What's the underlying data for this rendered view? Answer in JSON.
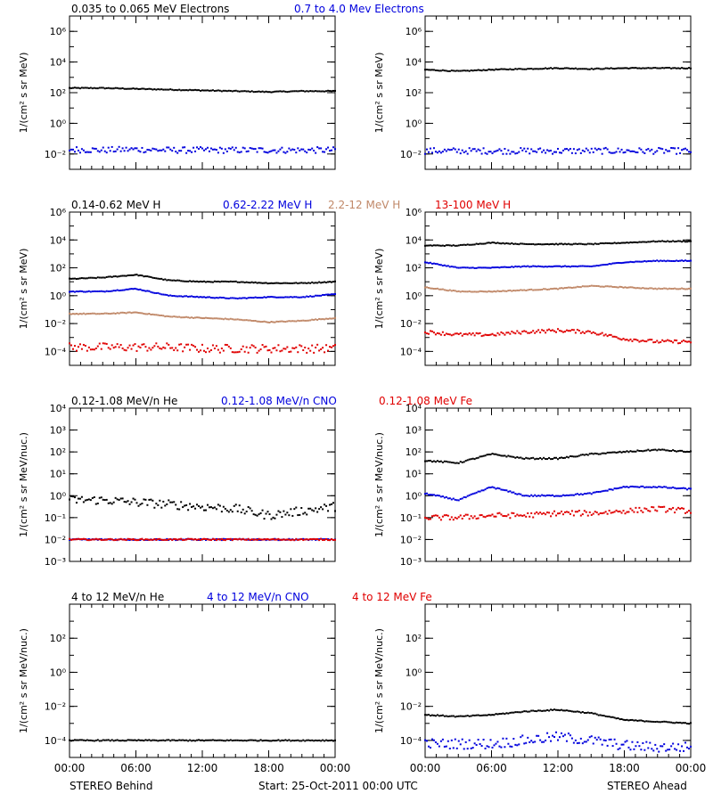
{
  "colors": {
    "black": "#000000",
    "blue": "#0000dd",
    "tan": "#c08868",
    "red": "#e00000"
  },
  "footer": {
    "left": "STEREO Behind",
    "center": "Start: 25-Oct-2011 00:00 UTC",
    "right": "STEREO Ahead"
  },
  "rows": [
    {
      "legend": [
        {
          "text": "0.035 to 0.065 MeV Electrons",
          "color": "#000000"
        },
        {
          "text": "0.7 to 4.0 Mev Electrons",
          "color": "#0000dd"
        }
      ],
      "ylabel": "1/(cm² s sr MeV)",
      "ylog": [
        -3,
        7
      ],
      "yticks": [
        {
          "label": "10⁶",
          "e": 6
        },
        {
          "label": "10⁴",
          "e": 4
        },
        {
          "label": "10²",
          "e": 2
        },
        {
          "label": "10⁰",
          "e": 0
        },
        {
          "label": "10⁻²",
          "e": -2
        }
      ]
    },
    {
      "legend": [
        {
          "text": "0.14-0.62 MeV H",
          "color": "#000000"
        },
        {
          "text": "0.62-2.22 MeV H",
          "color": "#0000dd"
        },
        {
          "text": "2.2-12 MeV H",
          "color": "#c08868"
        },
        {
          "text": "13-100 MeV H",
          "color": "#e00000"
        }
      ],
      "ylabel": "1/(cm² s sr MeV)",
      "ylog": [
        -5,
        6
      ],
      "yticks": [
        {
          "label": "10⁶",
          "e": 6
        },
        {
          "label": "10⁴",
          "e": 4
        },
        {
          "label": "10²",
          "e": 2
        },
        {
          "label": "10⁰",
          "e": 0
        },
        {
          "label": "10⁻²",
          "e": -2
        },
        {
          "label": "10⁻⁴",
          "e": -4
        }
      ]
    },
    {
      "legend": [
        {
          "text": "0.12-1.08 MeV/n He",
          "color": "#000000"
        },
        {
          "text": "0.12-1.08 MeV/n CNO",
          "color": "#0000dd"
        },
        {
          "text": "0.12-1.08 MeV Fe",
          "color": "#e00000"
        }
      ],
      "ylabel": "1/(cm² s sr MeV/nuc.)",
      "ylog": [
        -3,
        4
      ],
      "yticks": [
        {
          "label": "10⁴",
          "e": 4
        },
        {
          "label": "10³",
          "e": 3
        },
        {
          "label": "10²",
          "e": 2
        },
        {
          "label": "10¹",
          "e": 1
        },
        {
          "label": "10⁰",
          "e": 0
        },
        {
          "label": "10⁻¹",
          "e": -1
        },
        {
          "label": "10⁻²",
          "e": -2
        },
        {
          "label": "10⁻³",
          "e": -3
        }
      ]
    },
    {
      "legend": [
        {
          "text": "4 to 12 MeV/n He",
          "color": "#000000"
        },
        {
          "text": "4 to 12 MeV/n CNO",
          "color": "#0000dd"
        },
        {
          "text": "4 to 12 MeV Fe",
          "color": "#e00000"
        }
      ],
      "ylabel": "1/(cm² s sr MeV/nuc.)",
      "ylog": [
        -5,
        4
      ],
      "yticks": [
        {
          "label": "10²",
          "e": 2
        },
        {
          "label": "10⁰",
          "e": 0
        },
        {
          "label": "10⁻²",
          "e": -2
        },
        {
          "label": "10⁻⁴",
          "e": -4
        }
      ]
    }
  ],
  "chart_data": [
    {
      "type": "scatter",
      "spacecraft": "STEREO Behind",
      "x_hours": [
        0,
        3,
        6,
        9,
        12,
        15,
        18,
        21,
        24
      ],
      "ylog": [
        -3,
        7
      ],
      "series": [
        {
          "name": "0.035 to 0.065 MeV Electrons",
          "color": "#000000",
          "log10": [
            2.3,
            2.3,
            2.25,
            2.2,
            2.15,
            2.1,
            2.05,
            2.1,
            2.1
          ]
        },
        {
          "name": "0.7 to 4.0 Mev Electrons",
          "color": "#0000dd",
          "log10": [
            -1.7,
            -1.75,
            -1.7,
            -1.75,
            -1.75,
            -1.75,
            -1.75,
            -1.75,
            -1.75
          ],
          "scatter": 0.2
        }
      ]
    },
    {
      "type": "scatter",
      "spacecraft": "STEREO Ahead",
      "x_hours": [
        0,
        3,
        6,
        9,
        12,
        15,
        18,
        21,
        24
      ],
      "ylog": [
        -3,
        7
      ],
      "series": [
        {
          "name": "0.035 to 0.065 MeV Electrons",
          "color": "#000000",
          "log10": [
            3.5,
            3.4,
            3.5,
            3.55,
            3.6,
            3.55,
            3.6,
            3.6,
            3.6
          ]
        },
        {
          "name": "0.7 to 4.0 Mev Electrons",
          "color": "#0000dd",
          "log10": [
            -1.8,
            -1.8,
            -1.8,
            -1.8,
            -1.8,
            -1.8,
            -1.8,
            -1.8,
            -1.8
          ],
          "scatter": 0.2
        }
      ]
    },
    {
      "type": "scatter",
      "spacecraft": "STEREO Behind",
      "x_hours": [
        0,
        3,
        6,
        9,
        12,
        15,
        18,
        21,
        24
      ],
      "ylog": [
        -5,
        6
      ],
      "series": [
        {
          "name": "0.14-0.62 MeV H",
          "color": "#000000",
          "log10": [
            1.2,
            1.3,
            1.5,
            1.1,
            1.0,
            1.0,
            0.9,
            0.9,
            1.0
          ]
        },
        {
          "name": "0.62-2.22 MeV H",
          "color": "#0000dd",
          "log10": [
            0.3,
            0.3,
            0.5,
            0.0,
            -0.1,
            -0.2,
            -0.1,
            -0.1,
            0.1
          ]
        },
        {
          "name": "2.2-12 MeV H",
          "color": "#c08868",
          "log10": [
            -1.3,
            -1.3,
            -1.2,
            -1.5,
            -1.6,
            -1.7,
            -1.9,
            -1.8,
            -1.6
          ]
        },
        {
          "name": "13-100 MeV H",
          "color": "#e00000",
          "log10": [
            -3.7,
            -3.7,
            -3.7,
            -3.7,
            -3.8,
            -3.8,
            -3.8,
            -3.8,
            -3.8
          ],
          "scatter": 0.3
        }
      ]
    },
    {
      "type": "scatter",
      "spacecraft": "STEREO Ahead",
      "x_hours": [
        0,
        3,
        6,
        9,
        12,
        15,
        18,
        21,
        24
      ],
      "ylog": [
        -5,
        6
      ],
      "series": [
        {
          "name": "0.14-0.62 MeV H",
          "color": "#000000",
          "log10": [
            3.6,
            3.6,
            3.8,
            3.7,
            3.7,
            3.7,
            3.8,
            3.9,
            3.9
          ]
        },
        {
          "name": "0.62-2.22 MeV H",
          "color": "#0000dd",
          "log10": [
            2.4,
            2.0,
            2.0,
            2.1,
            2.1,
            2.1,
            2.4,
            2.5,
            2.5
          ]
        },
        {
          "name": "2.2-12 MeV H",
          "color": "#c08868",
          "log10": [
            0.6,
            0.3,
            0.3,
            0.4,
            0.5,
            0.7,
            0.6,
            0.5,
            0.5
          ]
        },
        {
          "name": "13-100 MeV H",
          "color": "#e00000",
          "log10": [
            -2.6,
            -2.8,
            -2.8,
            -2.6,
            -2.5,
            -2.6,
            -3.1,
            -3.3,
            -3.3
          ],
          "scatter": 0.12
        }
      ]
    },
    {
      "type": "scatter",
      "spacecraft": "STEREO Behind",
      "x_hours": [
        0,
        3,
        6,
        9,
        12,
        15,
        18,
        21,
        24
      ],
      "ylog": [
        -3,
        4
      ],
      "series": [
        {
          "name": "0.12-1.08 MeV/n He",
          "color": "#000000",
          "log10": [
            -0.2,
            -0.2,
            -0.3,
            -0.4,
            -0.5,
            -0.6,
            -0.9,
            -0.7,
            -0.5
          ],
          "scatter": 0.2
        },
        {
          "name": "0.12-1.08 MeV/n CNO",
          "color": "#0000dd",
          "log10": [
            -2.0,
            -2.0,
            -2.0,
            -2.0,
            -2.0,
            -2.0,
            -2.0,
            -2.0,
            -2.0
          ]
        },
        {
          "name": "0.12-1.08 MeV Fe",
          "color": "#e00000",
          "log10": [
            -2.0,
            -2.0,
            -2.0,
            -2.0,
            -2.0,
            -2.0,
            -2.0,
            -2.0,
            -2.0
          ]
        }
      ]
    },
    {
      "type": "scatter",
      "spacecraft": "STEREO Ahead",
      "x_hours": [
        0,
        3,
        6,
        9,
        12,
        15,
        18,
        21,
        24
      ],
      "ylog": [
        -3,
        4
      ],
      "series": [
        {
          "name": "0.12-1.08 MeV/n He",
          "color": "#000000",
          "log10": [
            1.6,
            1.5,
            1.9,
            1.7,
            1.7,
            1.9,
            2.0,
            2.1,
            2.0
          ]
        },
        {
          "name": "0.12-1.08 MeV/n CNO",
          "color": "#0000dd",
          "log10": [
            0.1,
            -0.2,
            0.4,
            0.0,
            0.0,
            0.1,
            0.4,
            0.4,
            0.3
          ]
        },
        {
          "name": "0.12-1.08 MeV Fe",
          "color": "#e00000",
          "log10": [
            -1.0,
            -1.0,
            -0.9,
            -0.9,
            -0.8,
            -0.8,
            -0.7,
            -0.6,
            -0.7
          ],
          "scatter": 0.12
        }
      ]
    },
    {
      "type": "scatter",
      "spacecraft": "STEREO Behind",
      "x_hours": [
        0,
        3,
        6,
        9,
        12,
        15,
        18,
        21,
        24
      ],
      "ylog": [
        -5,
        4
      ],
      "series": [
        {
          "name": "4 to 12 MeV/n He",
          "color": "#000000",
          "log10": [
            -4.0,
            -4.0,
            -4.0,
            -4.0,
            -4.0,
            -4.0,
            -4.0,
            -4.0,
            -4.0
          ]
        },
        {
          "name": "4 to 12 MeV/n CNO",
          "color": "#0000dd",
          "log10": []
        },
        {
          "name": "4 to 12 MeV Fe",
          "color": "#e00000",
          "log10": []
        }
      ]
    },
    {
      "type": "scatter",
      "spacecraft": "STEREO Ahead",
      "x_hours": [
        0,
        3,
        6,
        9,
        12,
        15,
        18,
        21,
        24
      ],
      "ylog": [
        -5,
        4
      ],
      "series": [
        {
          "name": "4 to 12 MeV/n He",
          "color": "#000000",
          "log10": [
            -2.5,
            -2.6,
            -2.5,
            -2.3,
            -2.2,
            -2.4,
            -2.8,
            -2.9,
            -3.0
          ]
        },
        {
          "name": "4 to 12 MeV/n CNO",
          "color": "#0000dd",
          "log10": [
            -4.2,
            -4.2,
            -4.2,
            -4.0,
            -3.8,
            -4.0,
            -4.3,
            -4.4,
            -4.4
          ],
          "scatter": 0.3
        },
        {
          "name": "4 to 12 MeV Fe",
          "color": "#e00000",
          "log10": []
        }
      ]
    }
  ],
  "xaxis": {
    "hours": [
      0,
      6,
      12,
      18,
      24
    ],
    "labels": [
      "00:00",
      "06:00",
      "12:00",
      "18:00",
      "00:00"
    ]
  }
}
